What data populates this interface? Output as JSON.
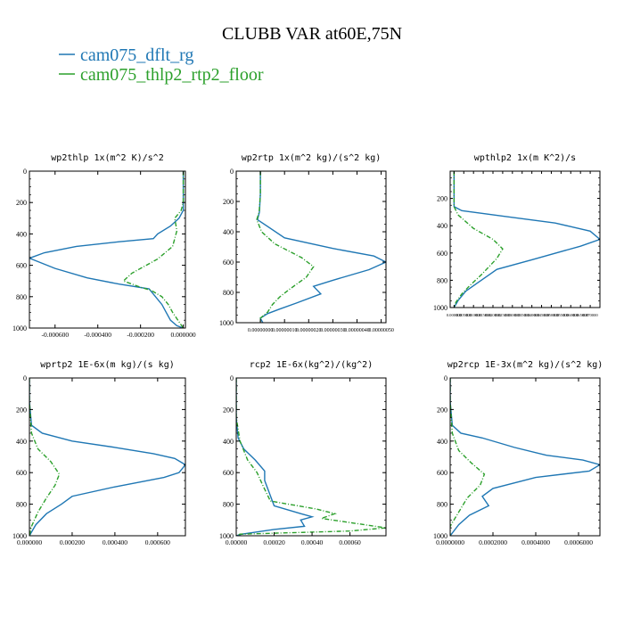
{
  "figure": {
    "title": "CLUBB VAR at60E,75N",
    "legend": [
      {
        "label": "cam075_dflt_rg",
        "color": "#1f77b4"
      },
      {
        "label": "cam075_thlp2_rtp2_floor",
        "color": "#2ca02c"
      }
    ]
  },
  "chart_data": [
    {
      "type": "line",
      "title": "wp2thlp   1x(m^2 K)/s^2",
      "xlim": [
        -0.00072,
        1e-05
      ],
      "ylim": [
        1000,
        0
      ],
      "xticks": [
        -0.0006,
        -0.0004,
        -0.0002,
        0.0
      ],
      "xtick_labels": [
        "-0.000600",
        "-0.000400",
        "-0.000200",
        "0.000000"
      ],
      "yticks": [
        0,
        200,
        400,
        600,
        800,
        1000
      ],
      "ytick_labels": [
        "0",
        "200",
        "400",
        "600",
        "800",
        "1000"
      ],
      "series": [
        {
          "name": "cam075_dflt_rg",
          "x": [
            0.0,
            0.0,
            0.0,
            -2e-05,
            -6e-05,
            -0.00012,
            -0.00014,
            -0.0003,
            -0.0005,
            -0.00065,
            -0.00072,
            -0.0006,
            -0.00045,
            -0.0003,
            -0.00016,
            -0.0001,
            -8e-05,
            -6e-05,
            -3e-05,
            0.0
          ],
          "y": [
            0,
            150,
            250,
            300,
            350,
            400,
            430,
            450,
            480,
            520,
            555,
            620,
            680,
            720,
            750,
            850,
            900,
            950,
            985,
            1000
          ]
        },
        {
          "name": "cam075_thlp2_rtp2_floor",
          "x": [
            0.0,
            0.0,
            -1e-05,
            -4e-05,
            -3e-05,
            -5e-05,
            -0.00012,
            -0.00024,
            -0.00028,
            -0.0002,
            -0.00015,
            -0.0001,
            -7e-05,
            -5e-05,
            -2e-05,
            0.0
          ],
          "y": [
            0,
            200,
            250,
            300,
            380,
            480,
            560,
            650,
            700,
            740,
            760,
            800,
            850,
            900,
            960,
            1000
          ]
        }
      ]
    },
    {
      "type": "line",
      "title": "wp2rtp   1x(m^2 kg)/(s^2 kg)",
      "xlim": [
        -1e-07,
        5.2e-07
      ],
      "ylim": [
        1000,
        0
      ],
      "xticks": [
        0.0,
        1e-07,
        2e-07,
        3e-07,
        4e-07,
        5e-07
      ],
      "xtick_labels": [
        "0.00000000",
        "0.00000010",
        "0.00000020",
        "0.00000030",
        "0.00000040",
        "0.00000050"
      ],
      "yticks": [
        0,
        200,
        400,
        600,
        800,
        1000
      ],
      "ytick_labels": [
        "0",
        "200",
        "400",
        "600",
        "800",
        "1000"
      ],
      "series": [
        {
          "name": "cam075_dflt_rg",
          "x": [
            0.0,
            0.0,
            -4e-09,
            -1.2e-08,
            1e-07,
            3e-07,
            4.7e-07,
            5.2e-07,
            4.5e-07,
            3e-07,
            2.2e-07,
            2.5e-07,
            1.5e-07,
            8e-08,
            3e-08,
            0.0,
            1e-08
          ],
          "y": [
            0,
            150,
            270,
            320,
            440,
            510,
            560,
            600,
            650,
            720,
            760,
            810,
            870,
            910,
            940,
            970,
            1000
          ]
        },
        {
          "name": "cam075_thlp2_rtp2_floor",
          "x": [
            0.0,
            0.0,
            -5e-09,
            -1.5e-08,
            5e-09,
            6e-08,
            1.7e-07,
            2.2e-07,
            1.9e-07,
            1.2e-07,
            8e-08,
            5e-08,
            3e-08,
            0.0,
            0.0
          ],
          "y": [
            0,
            150,
            270,
            320,
            400,
            480,
            570,
            630,
            700,
            780,
            830,
            880,
            930,
            970,
            1000
          ]
        }
      ]
    },
    {
      "type": "line",
      "title": "wpthlp2   1x(m K^2)/s",
      "xlim": [
        -0.002,
        0.075
      ],
      "ylim": [
        1000,
        0
      ],
      "xticks": [
        0.0,
        0.005,
        0.01,
        0.015,
        0.02,
        0.025,
        0.03,
        0.035,
        0.04,
        0.045,
        0.05,
        0.055,
        0.06,
        0.065,
        0.07
      ],
      "xtick_labels": [
        "0.000000",
        "0.005000",
        "0.010000",
        "0.015000",
        "0.020000",
        "0.025000",
        "0.030000",
        "0.035000",
        "0.040000",
        "0.045000",
        "0.050000",
        "0.055000",
        "0.060000",
        "0.065000",
        "0.070000"
      ],
      "yticks": [
        200,
        400,
        600,
        800,
        1000
      ],
      "ytick_labels": [
        "200",
        "400",
        "600",
        "800",
        "1000"
      ],
      "series": [
        {
          "name": "cam075_dflt_rg",
          "x": [
            0.0,
            0.0,
            0.0,
            0.004,
            0.025,
            0.052,
            0.07,
            0.075,
            0.065,
            0.04,
            0.022,
            0.018,
            0.012,
            0.006,
            0.002,
            0.0
          ],
          "y": [
            0,
            150,
            260,
            290,
            330,
            380,
            440,
            500,
            550,
            650,
            720,
            760,
            820,
            880,
            950,
            1000
          ]
        },
        {
          "name": "cam075_thlp2_rtp2_floor",
          "x": [
            0.0,
            0.0,
            0.0,
            0.002,
            0.01,
            0.02,
            0.025,
            0.022,
            0.018,
            0.014,
            0.008,
            0.004,
            0.001,
            0.0
          ],
          "y": [
            0,
            150,
            260,
            320,
            420,
            500,
            570,
            640,
            700,
            760,
            840,
            900,
            960,
            1000
          ]
        }
      ]
    },
    {
      "type": "line",
      "title": "wprtp2   1E-6x(m kg)/(s kg)",
      "xlim": [
        0.0,
        0.00073
      ],
      "ylim": [
        1000,
        0
      ],
      "xticks": [
        0.0,
        0.0002,
        0.0004,
        0.0006
      ],
      "xtick_labels": [
        "0.000000",
        "0.000200",
        "0.000400",
        "0.000600"
      ],
      "yticks": [
        0,
        200,
        400,
        600,
        800,
        1000
      ],
      "ytick_labels": [
        "0",
        "200",
        "400",
        "600",
        "800",
        "1000"
      ],
      "series": [
        {
          "name": "cam075_dflt_rg",
          "x": [
            0.0,
            0.0,
            1e-05,
            6e-05,
            0.0002,
            0.0004,
            0.00058,
            0.00068,
            0.00073,
            0.0007,
            0.00063,
            0.0004,
            0.0002,
            0.00015,
            8e-05,
            3e-05,
            0.0
          ],
          "y": [
            0,
            150,
            300,
            350,
            400,
            440,
            480,
            510,
            550,
            600,
            630,
            690,
            750,
            800,
            860,
            930,
            1000
          ]
        },
        {
          "name": "cam075_thlp2_rtp2_floor",
          "x": [
            0.0,
            0.0,
            1e-05,
            4e-05,
            0.0001,
            0.00014,
            0.00012,
            8e-05,
            4e-05,
            1e-05,
            0.0
          ],
          "y": [
            0,
            150,
            350,
            450,
            530,
            610,
            680,
            760,
            850,
            940,
            1000
          ]
        }
      ]
    },
    {
      "type": "line",
      "title": "rcp2   1E-6x(kg^2)/(kg^2)",
      "xlim": [
        0.0,
        0.00079
      ],
      "ylim": [
        1000,
        0
      ],
      "xticks": [
        0.0,
        0.0002,
        0.0004,
        0.0006
      ],
      "xtick_labels": [
        "0.00000",
        "0.00020",
        "0.00040",
        "0.00060"
      ],
      "yticks": [
        0,
        200,
        400,
        600,
        800,
        1000
      ],
      "ytick_labels": [
        "0",
        "200",
        "400",
        "600",
        "800",
        "1000"
      ],
      "series": [
        {
          "name": "cam075_dflt_rg",
          "x": [
            0.0,
            0.0,
            1e-05,
            4e-05,
            0.0001,
            0.00015,
            0.00015,
            0.0002,
            0.00034,
            0.0004,
            0.00034,
            0.00036,
            0.0002,
            3e-05,
            0.0
          ],
          "y": [
            0,
            250,
            380,
            450,
            520,
            590,
            650,
            810,
            860,
            880,
            900,
            940,
            960,
            990,
            1000
          ]
        },
        {
          "name": "cam075_thlp2_rtp2_floor",
          "x": [
            0.0,
            0.0,
            2e-05,
            6e-05,
            0.00011,
            0.00014,
            0.00018,
            0.00042,
            0.00052,
            0.00045,
            0.00079,
            0.0006,
            2e-05,
            0.0
          ],
          "y": [
            0,
            250,
            400,
            520,
            600,
            680,
            780,
            830,
            860,
            890,
            950,
            970,
            990,
            1000
          ]
        }
      ]
    },
    {
      "type": "line",
      "title": "wp2rcp   1E-3x(m^2 kg)/(s^2 kg)",
      "xlim": [
        0.0,
        0.0007
      ],
      "ylim": [
        1000,
        0
      ],
      "xticks": [
        0.0,
        0.0002,
        0.0004,
        0.0006
      ],
      "xtick_labels": [
        "0.0000000",
        "0.0002000",
        "0.0004000",
        "0.0006000"
      ],
      "yticks": [
        0,
        200,
        400,
        600,
        800,
        1000
      ],
      "ytick_labels": [
        "0",
        "200",
        "400",
        "600",
        "800",
        "1000"
      ],
      "series": [
        {
          "name": "cam075_dflt_rg",
          "x": [
            0.0,
            0.0,
            1e-05,
            5e-05,
            0.00015,
            0.0003,
            0.00045,
            0.00062,
            0.0007,
            0.00065,
            0.0004,
            0.0002,
            0.00015,
            0.00018,
            9e-05,
            4e-05,
            0.0
          ],
          "y": [
            0,
            150,
            300,
            350,
            380,
            440,
            490,
            520,
            550,
            590,
            630,
            700,
            750,
            810,
            870,
            930,
            1000
          ]
        },
        {
          "name": "cam075_thlp2_rtp2_floor",
          "x": [
            0.0,
            0.0,
            1e-05,
            4e-05,
            0.0001,
            0.00016,
            0.00014,
            8e-05,
            4e-05,
            0.0,
            0.0
          ],
          "y": [
            0,
            150,
            350,
            460,
            540,
            610,
            680,
            760,
            850,
            940,
            1000
          ]
        }
      ]
    }
  ]
}
